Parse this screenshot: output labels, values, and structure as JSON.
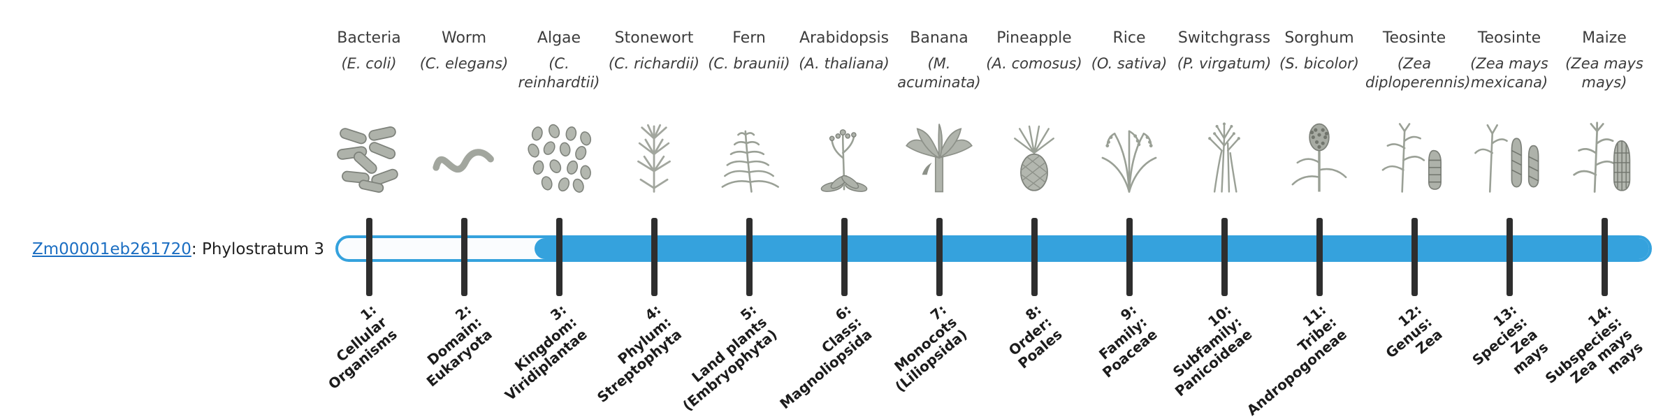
{
  "gene_label": {
    "gene_id": "Zm00001eb261720",
    "suffix": ": Phylostratum 3",
    "link_color": "#1b6ec2"
  },
  "bar": {
    "color": "#35a2dd",
    "track_fill": "#fafcfe",
    "fill_start_stratum": 3
  },
  "tick_color": "#2e2e2e",
  "organisms": [
    {
      "name": "Bacteria",
      "sci": "(E. coli)",
      "icon": "bacteria-icon"
    },
    {
      "name": "Worm",
      "sci": "(C. elegans)",
      "icon": "worm-icon"
    },
    {
      "name": "Algae",
      "sci": "(C. reinhardtii)",
      "icon": "algae-icon"
    },
    {
      "name": "Stonewort",
      "sci": "(C. richardii)",
      "icon": "stonewort-icon"
    },
    {
      "name": "Fern",
      "sci": "(C. braunii)",
      "icon": "fern-icon"
    },
    {
      "name": "Arabidopsis",
      "sci": "(A. thaliana)",
      "icon": "arabidopsis-icon"
    },
    {
      "name": "Banana",
      "sci": "(M. acuminata)",
      "icon": "banana-icon"
    },
    {
      "name": "Pineapple",
      "sci": "(A. comosus)",
      "icon": "pineapple-icon"
    },
    {
      "name": "Rice",
      "sci": "(O. sativa)",
      "icon": "rice-icon"
    },
    {
      "name": "Switchgrass",
      "sci": "(P. virgatum)",
      "icon": "switchgrass-icon"
    },
    {
      "name": "Sorghum",
      "sci": "(S. bicolor)",
      "icon": "sorghum-icon"
    },
    {
      "name": "Teosinte",
      "sci": "(Zea diploperennis)",
      "icon": "teosinte-diploperennis-icon"
    },
    {
      "name": "Teosinte",
      "sci": "(Zea mays mexicana)",
      "icon": "teosinte-mexicana-icon"
    },
    {
      "name": "Maize",
      "sci": "(Zea mays mays)",
      "icon": "maize-icon"
    }
  ],
  "phylostrata": [
    {
      "num": 1,
      "lines": [
        "1:",
        "Cellular",
        "Organisms"
      ]
    },
    {
      "num": 2,
      "lines": [
        "2:",
        "Domain:",
        "Eukaryota"
      ]
    },
    {
      "num": 3,
      "lines": [
        "3:",
        "Kingdom:",
        "Viridiplantae"
      ]
    },
    {
      "num": 4,
      "lines": [
        "4:",
        "Phylum:",
        "Streptophyta"
      ]
    },
    {
      "num": 5,
      "lines": [
        "5:",
        "Land plants",
        "(Embryophyta)"
      ]
    },
    {
      "num": 6,
      "lines": [
        "6:",
        "Class:",
        "Magnoliopsida"
      ]
    },
    {
      "num": 7,
      "lines": [
        "7:",
        "Monocots",
        "(Liliopsida)"
      ]
    },
    {
      "num": 8,
      "lines": [
        "8:",
        "Order:",
        "Poales"
      ]
    },
    {
      "num": 9,
      "lines": [
        "9:",
        "Family:",
        "Poaceae"
      ]
    },
    {
      "num": 10,
      "lines": [
        "10:",
        "Subfamily:",
        "Panicoideae"
      ]
    },
    {
      "num": 11,
      "lines": [
        "11:",
        "Tribe:",
        "Andropogoneae"
      ]
    },
    {
      "num": 12,
      "lines": [
        "12:",
        "Genus:",
        "Zea"
      ]
    },
    {
      "num": 13,
      "lines": [
        "13:",
        "Species:",
        "Zea",
        "mays"
      ]
    },
    {
      "num": 14,
      "lines": [
        "14:",
        "Subspecies:",
        "Zea mays",
        "mays"
      ]
    }
  ]
}
